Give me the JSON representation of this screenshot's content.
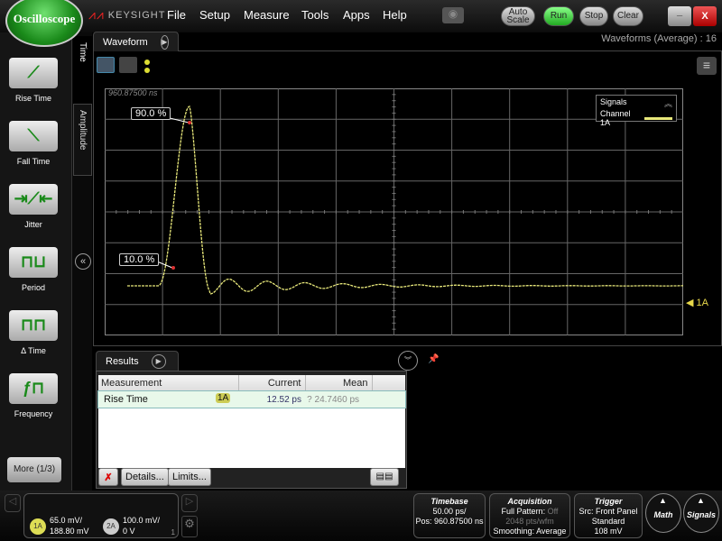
{
  "app": {
    "title": "Oscilloscope",
    "brand": "KEYSIGHT"
  },
  "menu": [
    "File",
    "Setup",
    "Measure",
    "Tools",
    "Apps",
    "Help"
  ],
  "controls": {
    "auto_scale": "Auto Scale",
    "run": "Run",
    "stop": "Stop",
    "clear": "Clear"
  },
  "sidebar": {
    "items": [
      {
        "label": "Rise Time",
        "icon": "rise-time-icon"
      },
      {
        "label": "Fall Time",
        "icon": "fall-time-icon"
      },
      {
        "label": "Jitter",
        "icon": "jitter-icon"
      },
      {
        "label": "Period",
        "icon": "period-icon"
      },
      {
        "label": "Δ Time",
        "icon": "delta-time-icon"
      },
      {
        "label": "Frequency",
        "icon": "frequency-icon"
      }
    ],
    "more": "More (1/3)",
    "tabs": [
      "Time",
      "Amplitude"
    ]
  },
  "waveform": {
    "tab": "Waveform",
    "status": "Waveforms (Average) : 16",
    "time_label": "960.87500 ns",
    "marker_90": "90.0 %",
    "marker_10": "10.0 %",
    "channel_marker": "1A",
    "legend": {
      "title": "Signals",
      "channel": "Channel 1A"
    },
    "trace_color": "#e8e87a"
  },
  "results": {
    "tab": "Results",
    "columns": [
      "Measurement",
      "Current",
      "Mean"
    ],
    "rows": [
      {
        "measurement": "Rise Time",
        "source": "1A",
        "current": "12.52 ps",
        "mean": "? 24.7460 ps"
      }
    ],
    "details": "Details...",
    "limits": "Limits..."
  },
  "bottom": {
    "ch1": {
      "id": "1A",
      "scale": "65.0 mV/",
      "offset": "188.80 mV"
    },
    "ch2": {
      "id": "2A",
      "scale": "100.0 mV/",
      "offset": "0 V"
    },
    "page_num": "1",
    "timebase": {
      "title": "Timebase",
      "scale": "50.00 ps/",
      "pos": "Pos: 960.87500 ns"
    },
    "acquisition": {
      "title": "Acquisition",
      "pattern": "Full Pattern:",
      "pattern_val": "Off",
      "points": "2048 pts/wfm",
      "smoothing": "Smoothing: Average"
    },
    "trigger": {
      "title": "Trigger",
      "src": "Src: Front Panel",
      "mode": "Standard",
      "level": "108 mV"
    },
    "math": "Math",
    "signals": "Signals"
  }
}
